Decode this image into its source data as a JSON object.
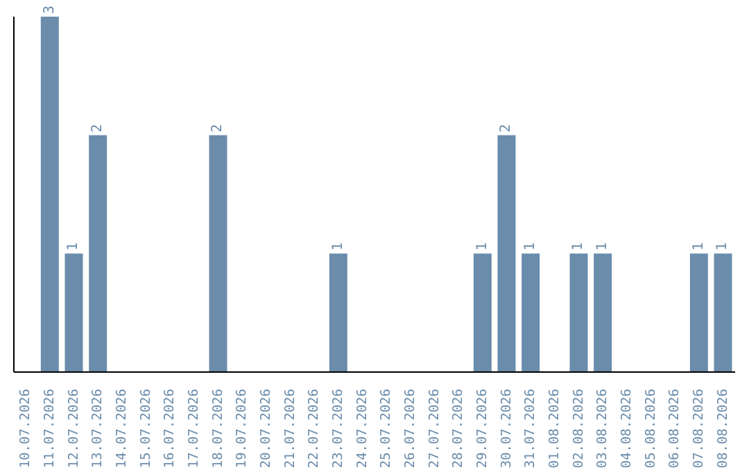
{
  "chart_data": {
    "type": "bar",
    "categories": [
      "10.07.2026",
      "11.07.2026",
      "12.07.2026",
      "13.07.2026",
      "14.07.2026",
      "15.07.2026",
      "16.07.2026",
      "17.07.2026",
      "18.07.2026",
      "19.07.2026",
      "20.07.2026",
      "21.07.2026",
      "22.07.2026",
      "23.07.2026",
      "24.07.2026",
      "25.07.2026",
      "26.07.2026",
      "27.07.2026",
      "28.07.2026",
      "29.07.2026",
      "30.07.2026",
      "31.07.2026",
      "01.08.2026",
      "02.08.2026",
      "03.08.2026",
      "04.08.2026",
      "05.08.2026",
      "06.08.2026",
      "07.08.2026",
      "08.08.2026"
    ],
    "values": [
      0,
      3,
      1,
      2,
      0,
      0,
      0,
      0,
      2,
      0,
      0,
      0,
      0,
      1,
      0,
      0,
      0,
      0,
      0,
      1,
      2,
      1,
      0,
      1,
      1,
      0,
      0,
      0,
      1,
      1
    ],
    "value_labels": [
      null,
      "3",
      "1",
      "2",
      null,
      null,
      null,
      null,
      "2",
      null,
      null,
      null,
      null,
      "1",
      null,
      null,
      null,
      null,
      null,
      "1",
      "2",
      "1",
      null,
      "1",
      "1",
      null,
      null,
      null,
      "1",
      "1"
    ],
    "color": "#6b8cab",
    "grid": false,
    "legend": false
  }
}
